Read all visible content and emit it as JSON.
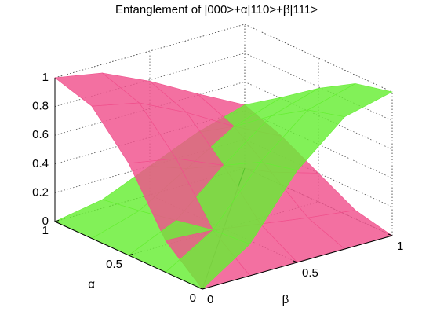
{
  "chart_data": {
    "type": "surface",
    "title": "Entanglement of |000>+α|110>+β|111>",
    "xlabel": "α",
    "ylabel": "β",
    "x": [
      0,
      0.25,
      0.5,
      0.75,
      1
    ],
    "y": [
      0,
      0.25,
      0.5,
      0.75,
      1
    ],
    "xlim": [
      0,
      1
    ],
    "ylim": [
      0,
      1
    ],
    "zlim": [
      0,
      1
    ],
    "xticks": [
      0,
      0.5,
      1
    ],
    "yticks": [
      0,
      0.5,
      1
    ],
    "zticks": [
      0,
      0.2,
      0.4,
      0.6,
      0.8,
      1
    ],
    "grid": true,
    "surfaces": [
      {
        "color": "#f0508c",
        "z": [
          [
            0,
            0,
            0,
            0,
            0
          ],
          [
            0.22,
            0.2,
            0.15,
            0.1,
            0.06
          ],
          [
            0.64,
            0.58,
            0.44,
            0.3,
            0.2
          ],
          [
            0.92,
            0.85,
            0.69,
            0.5,
            0.34
          ],
          [
            1,
            0.94,
            0.79,
            0.61,
            0.44
          ]
        ]
      },
      {
        "color": "#66ee33",
        "z": [
          [
            0,
            0.22,
            0.64,
            0.92,
            1
          ],
          [
            0,
            0.2,
            0.58,
            0.85,
            0.94
          ],
          [
            0,
            0.15,
            0.44,
            0.69,
            0.79
          ],
          [
            0,
            0.1,
            0.3,
            0.5,
            0.61
          ],
          [
            0,
            0.06,
            0.2,
            0.34,
            0.44
          ]
        ]
      }
    ]
  }
}
